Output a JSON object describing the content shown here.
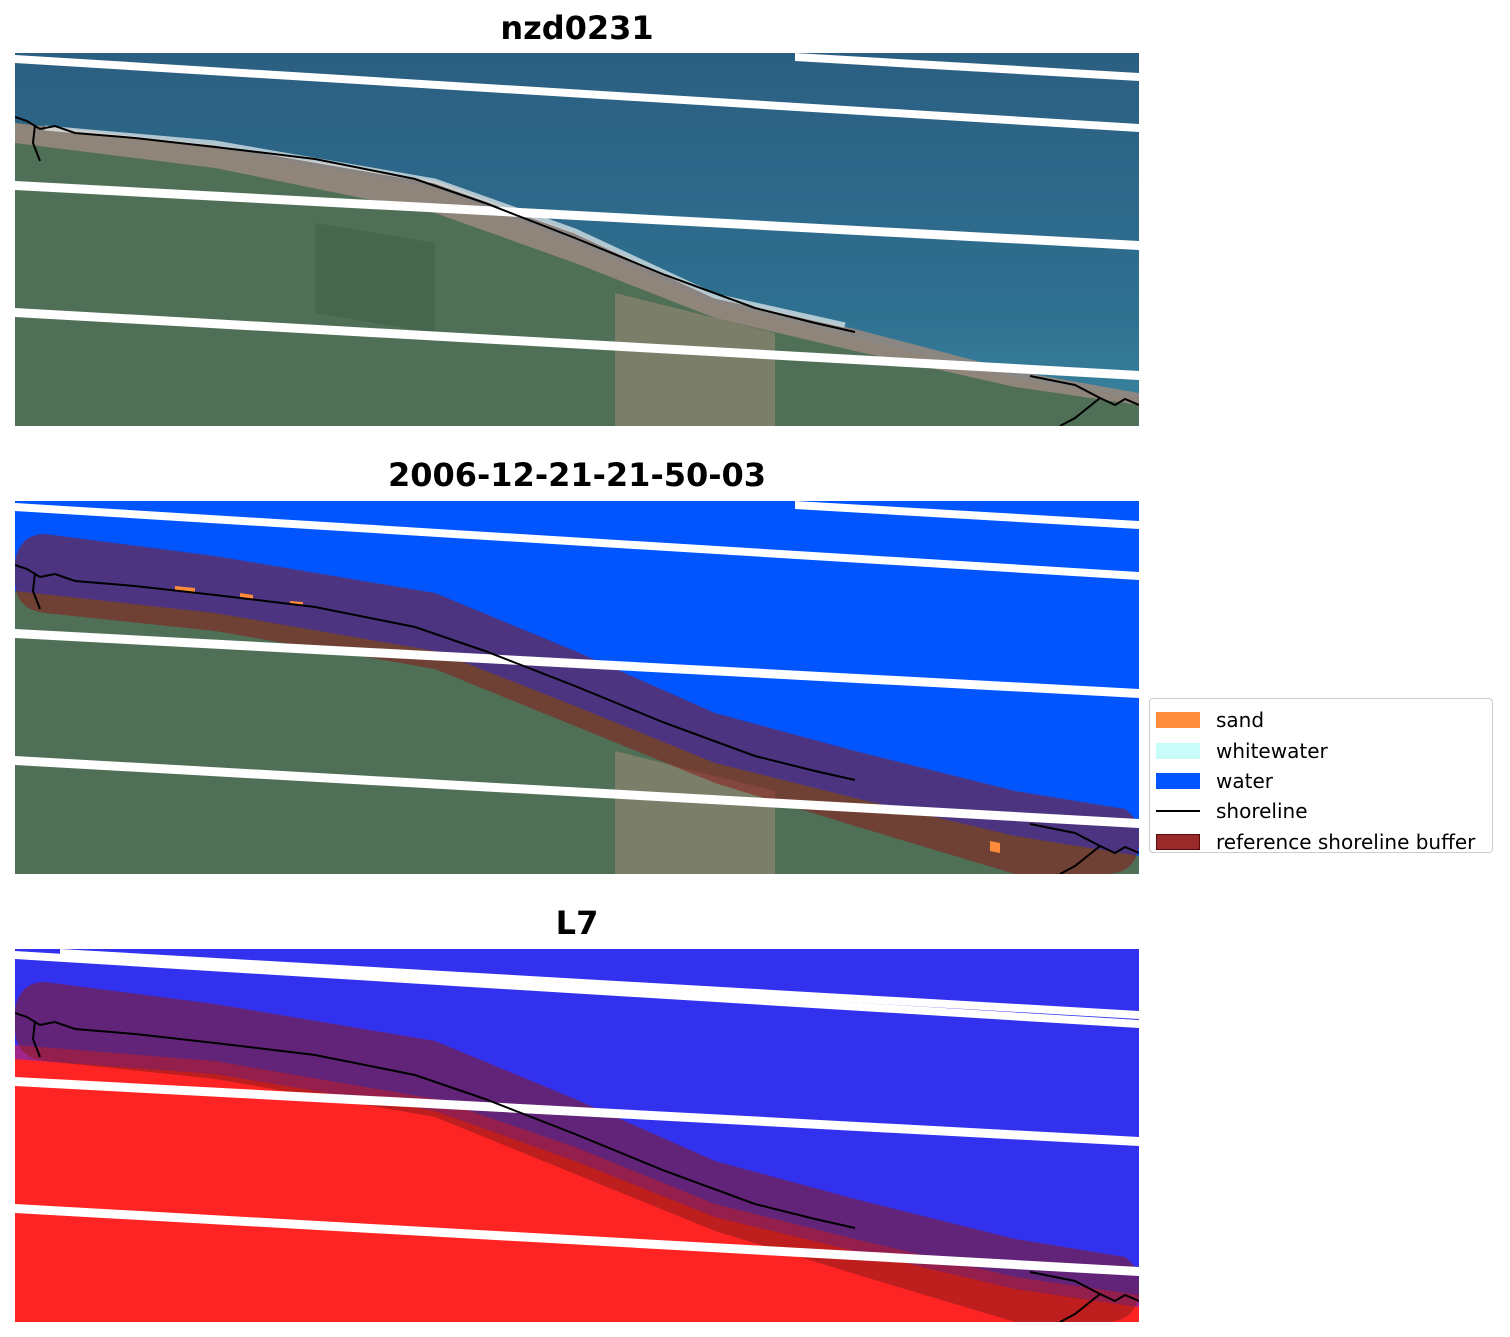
{
  "panels": {
    "rgb": {
      "title": "nzd0231"
    },
    "classification": {
      "title": "2006-12-21-21-50-03"
    },
    "ndwi": {
      "title": "L7"
    }
  },
  "legend": {
    "items": [
      {
        "label": "sand",
        "kind": "patch",
        "color": "#ff8c3a"
      },
      {
        "label": "whitewater",
        "kind": "patch",
        "color": "#c8fcf8"
      },
      {
        "label": "water",
        "kind": "patch",
        "color": "#0055ff"
      },
      {
        "label": "shoreline",
        "kind": "line",
        "color": "#000000"
      },
      {
        "label": "reference shoreline buffer",
        "kind": "patch",
        "color": "#8b1a1a"
      }
    ]
  },
  "colors": {
    "ocean": "#2f6a8c",
    "land": "#4f6f56",
    "beach": "#9a8a80",
    "water_class": "#0055ff",
    "buffer": "#8b1a1a",
    "ndwi_water": "#3030f0",
    "ndwi_land": "#ff2020",
    "scanline_gaps": "#ffffff"
  }
}
